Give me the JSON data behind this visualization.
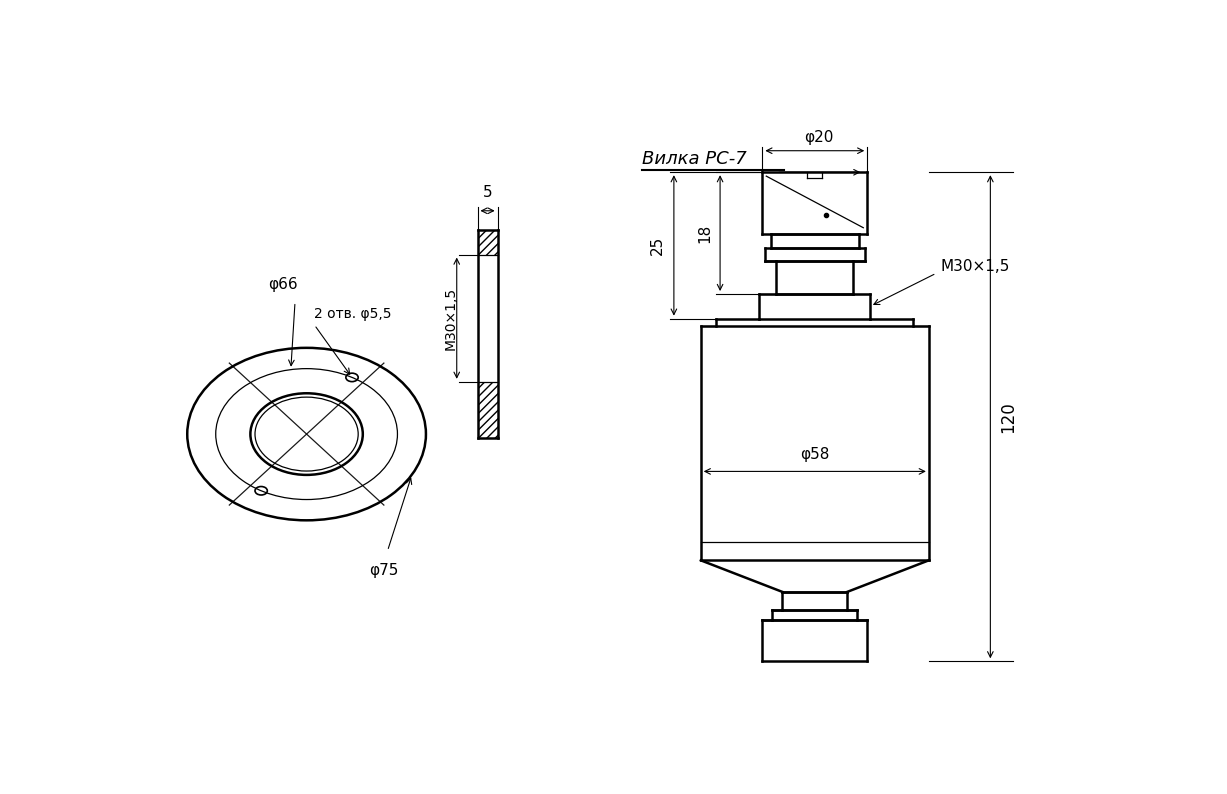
{
  "bg_color": "#ffffff",
  "line_color": "#000000",
  "fig_width": 12.27,
  "fig_height": 7.94,
  "connector_label": "Вилка РС-7",
  "dim_phi20": "φ20",
  "dim_phi58": "φ58",
  "dim_phi66": "φ66",
  "dim_phi75": "φ75",
  "dim_phi55": "2 отв. φ5,5",
  "dim_25": "25",
  "dim_18": "18",
  "dim_5": "5",
  "dim_120": "120",
  "dim_M30_side": "M30×1,5",
  "dim_M30_flange": "M30×1,5"
}
